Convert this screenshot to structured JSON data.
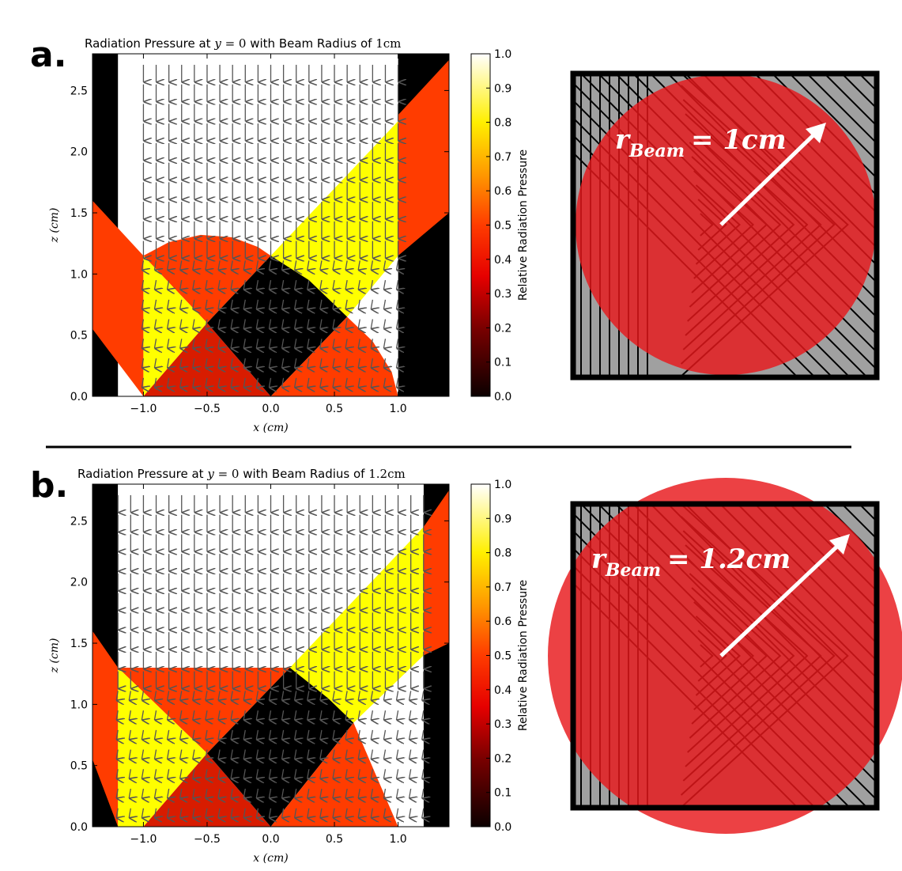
{
  "panel_labels": {
    "a": "a.",
    "b": "b."
  },
  "colors": {
    "black": "#000000",
    "red": "#d81c00",
    "orange": "#ff3c00",
    "yellow": "#ffff00",
    "white": "#ffffff",
    "arrow": "#555555",
    "beam": "#e8171b",
    "gray": "#a0a0a0"
  },
  "chart_data": [
    {
      "type": "heatmap",
      "panel": "a",
      "title": "Radiation Pressure at y=0 with Beam Radius of 1cm",
      "title_parts": {
        "prefix": "Radiation Pressure at",
        "var": "y",
        "eq": "= 0",
        "mid": "with Beam Radius of",
        "radius": "1cm"
      },
      "xlabel": "x (cm)",
      "ylabel": "z (cm)",
      "xlim": [
        -1.4,
        1.4
      ],
      "ylim": [
        0,
        2.8
      ],
      "xticks": [
        -1.0,
        -0.5,
        0.0,
        0.5,
        1.0
      ],
      "xtick_labels": [
        "−1.0",
        "−0.5",
        "0.0",
        "0.5",
        "1.0"
      ],
      "yticks": [
        0.0,
        0.5,
        1.0,
        1.5,
        2.0,
        2.5
      ],
      "ytick_labels": [
        "0.0",
        "0.5",
        "1.0",
        "1.5",
        "2.0",
        "2.5"
      ],
      "colorbar": {
        "label": "Relative Radiation Pressure",
        "range": [
          0,
          1
        ],
        "ticks": [
          "0.0",
          "0.1",
          "0.2",
          "0.3",
          "0.4",
          "0.5",
          "0.6",
          "0.7",
          "0.8",
          "0.9",
          "1.0"
        ]
      },
      "beam_radius_cm": 1.0,
      "regions": [
        {
          "name": "outside-left",
          "value": 0.0,
          "points": [
            [
              -1.4,
              0
            ],
            [
              -1.2,
              0
            ],
            [
              -1.2,
              2.8
            ],
            [
              -1.4,
              2.8
            ]
          ]
        },
        {
          "name": "outside-right",
          "value": 0.0,
          "points": [
            [
              1.0,
              0
            ],
            [
              1.4,
              0
            ],
            [
              1.4,
              2.8
            ],
            [
              1.0,
              2.8
            ]
          ]
        },
        {
          "name": "top-white",
          "value": 1.0,
          "points": [
            [
              -1.0,
              2.8
            ],
            [
              1.0,
              2.8
            ],
            [
              1.0,
              0
            ],
            [
              0.6,
              0.6
            ],
            [
              0.0,
              1.15
            ],
            [
              -1.0,
              1.15
            ]
          ]
        },
        {
          "name": "yellow-band",
          "value": 0.8,
          "points": [
            [
              0.0,
              1.15
            ],
            [
              1.0,
              2.25
            ],
            [
              1.0,
              1.15
            ],
            [
              0.6,
              0.65
            ]
          ]
        },
        {
          "name": "left-red",
          "value": 0.45,
          "points": [
            [
              -1.4,
              1.6
            ],
            [
              -1.0,
              1.15
            ],
            [
              -1.0,
              0
            ],
            [
              -1.4,
              0.55
            ]
          ]
        },
        {
          "name": "right-red",
          "value": 0.45,
          "points": [
            [
              1.0,
              2.3
            ],
            [
              1.4,
              2.75
            ],
            [
              1.4,
              1.5
            ],
            [
              1.0,
              1.15
            ]
          ]
        },
        {
          "name": "cap-red",
          "value": 0.45,
          "points": [
            [
              -1.0,
              1.15
            ],
            [
              -0.8,
              1.26
            ],
            [
              -0.55,
              1.32
            ],
            [
              -0.3,
              1.3
            ],
            [
              -0.1,
              1.22
            ],
            [
              0.0,
              1.15
            ],
            [
              -0.5,
              0.6
            ]
          ]
        },
        {
          "name": "left-yellow",
          "value": 0.8,
          "points": [
            [
              -1.0,
              1.15
            ],
            [
              -0.5,
              0.6
            ],
            [
              -1.0,
              0
            ]
          ]
        },
        {
          "name": "bottom-red",
          "value": 0.35,
          "points": [
            [
              -1.0,
              0
            ],
            [
              -0.5,
              0.6
            ],
            [
              0.0,
              0
            ]
          ]
        },
        {
          "name": "center-black",
          "value": 0.0,
          "points": [
            [
              -0.5,
              0.6
            ],
            [
              0.0,
              1.15
            ],
            [
              0.3,
              0.95
            ],
            [
              0.6,
              0.65
            ],
            [
              0.0,
              0
            ]
          ]
        },
        {
          "name": "bottom-right-red",
          "value": 0.45,
          "points": [
            [
              0.0,
              0
            ],
            [
              0.6,
              0.65
            ],
            [
              0.8,
              0.45
            ],
            [
              0.95,
              0.2
            ],
            [
              1.0,
              0
            ]
          ]
        }
      ]
    },
    {
      "type": "heatmap",
      "panel": "b",
      "title": "Radiation Pressure at y=0 with Beam Radius of 1.2cm",
      "title_parts": {
        "prefix": "Radiation Pressure at",
        "var": "y",
        "eq": "= 0",
        "mid": "with Beam Radius of",
        "radius": "1.2cm"
      },
      "xlabel": "x (cm)",
      "ylabel": "z (cm)",
      "xlim": [
        -1.4,
        1.4
      ],
      "ylim": [
        0,
        2.8
      ],
      "xticks": [
        -1.0,
        -0.5,
        0.0,
        0.5,
        1.0
      ],
      "xtick_labels": [
        "−1.0",
        "−0.5",
        "0.0",
        "0.5",
        "1.0"
      ],
      "yticks": [
        0.0,
        0.5,
        1.0,
        1.5,
        2.0,
        2.5
      ],
      "ytick_labels": [
        "0.0",
        "0.5",
        "1.0",
        "1.5",
        "2.0",
        "2.5"
      ],
      "colorbar": {
        "label": "Relative Radiation Pressure",
        "range": [
          0,
          1
        ],
        "ticks": [
          "0.0",
          "0.1",
          "0.2",
          "0.3",
          "0.4",
          "0.5",
          "0.6",
          "0.7",
          "0.8",
          "0.9",
          "1.0"
        ]
      },
      "beam_radius_cm": 1.2,
      "regions": [
        {
          "name": "outside-left",
          "value": 0.0,
          "points": [
            [
              -1.4,
              0
            ],
            [
              -1.2,
              0
            ],
            [
              -1.2,
              2.8
            ],
            [
              -1.4,
              2.8
            ]
          ]
        },
        {
          "name": "outside-right",
          "value": 0.0,
          "points": [
            [
              1.2,
              0
            ],
            [
              1.4,
              0
            ],
            [
              1.4,
              2.8
            ],
            [
              1.2,
              2.8
            ]
          ]
        },
        {
          "name": "top-white",
          "value": 1.0,
          "points": [
            [
              -1.2,
              2.8
            ],
            [
              1.2,
              2.8
            ],
            [
              1.2,
              0
            ],
            [
              0.6,
              0.7
            ],
            [
              0.15,
              1.3
            ],
            [
              -1.2,
              1.3
            ]
          ]
        },
        {
          "name": "yellow-band",
          "value": 0.8,
          "points": [
            [
              0.15,
              1.3
            ],
            [
              1.2,
              2.45
            ],
            [
              1.2,
              1.4
            ],
            [
              0.65,
              0.85
            ]
          ]
        },
        {
          "name": "left-red",
          "value": 0.45,
          "points": [
            [
              -1.4,
              1.6
            ],
            [
              -1.2,
              1.3
            ],
            [
              -1.2,
              0
            ],
            [
              -1.4,
              0.55
            ]
          ]
        },
        {
          "name": "right-red",
          "value": 0.45,
          "points": [
            [
              1.2,
              2.45
            ],
            [
              1.4,
              2.75
            ],
            [
              1.4,
              1.5
            ],
            [
              1.2,
              1.4
            ]
          ]
        },
        {
          "name": "cap-red",
          "value": 0.45,
          "points": [
            [
              -1.2,
              1.3
            ],
            [
              0.15,
              1.3
            ],
            [
              -0.5,
              0.6
            ]
          ]
        },
        {
          "name": "left-yellow",
          "value": 0.8,
          "points": [
            [
              -1.2,
              1.3
            ],
            [
              -0.5,
              0.6
            ],
            [
              -1.0,
              0
            ],
            [
              -1.2,
              0
            ]
          ]
        },
        {
          "name": "bottom-red",
          "value": 0.35,
          "points": [
            [
              -1.0,
              0
            ],
            [
              -0.5,
              0.6
            ],
            [
              0.0,
              0
            ]
          ]
        },
        {
          "name": "center-black",
          "value": 0.0,
          "points": [
            [
              -0.5,
              0.6
            ],
            [
              0.15,
              1.3
            ],
            [
              0.45,
              1.05
            ],
            [
              0.65,
              0.85
            ],
            [
              0.0,
              0
            ]
          ]
        },
        {
          "name": "bottom-right-red",
          "value": 0.45,
          "points": [
            [
              0.0,
              0
            ],
            [
              0.65,
              0.85
            ],
            [
              1.0,
              0
            ]
          ]
        }
      ]
    }
  ],
  "diagrams": [
    {
      "panel": "a",
      "label_main": "r",
      "label_sub": "Beam",
      "label_value": "= 1cm"
    },
    {
      "panel": "b",
      "label_main": "r",
      "label_sub": "Beam",
      "label_value": "= 1.2cm"
    }
  ]
}
